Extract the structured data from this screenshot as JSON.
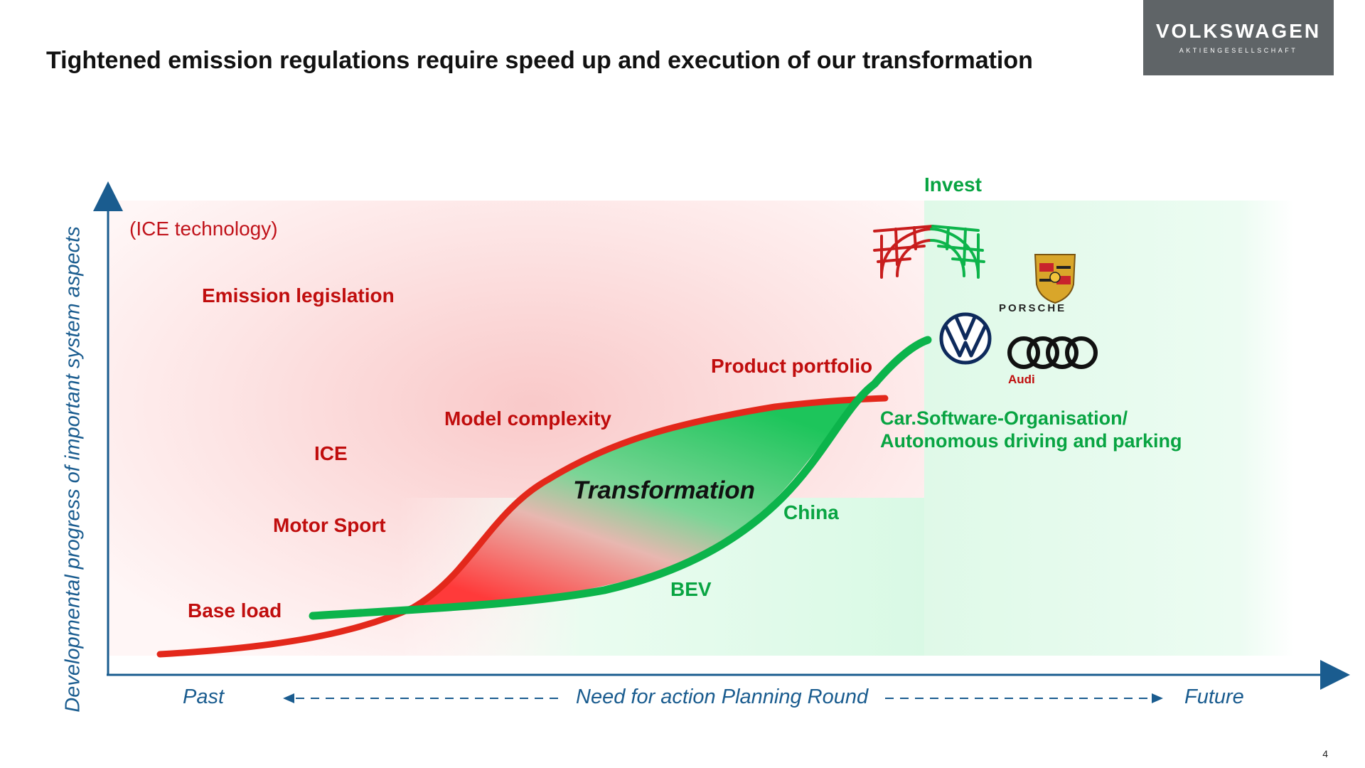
{
  "title": "Tightened emission regulations require speed up and execution of our transformation",
  "logo": {
    "name": "VOLKSWAGEN",
    "sub": "AKTIENGESELLSCHAFT"
  },
  "page_number": "4",
  "y_axis_label": "Developmental progress of important system aspects",
  "x_axis": {
    "left": "Past",
    "center": "Need for action Planning Round",
    "right": "Future"
  },
  "red_labels": {
    "ice_technology": "(ICE technology)",
    "emission_legislation": "Emission legislation",
    "model_complexity": "Model complexity",
    "ice": "ICE",
    "motor_sport": "Motor Sport",
    "base_load": "Base load",
    "product_portfolio": "Product portfolio"
  },
  "green_labels": {
    "invest": "Invest",
    "car_software_line1": "Car.Software-Organisation/",
    "car_software_line2": "Autonomous driving and parking",
    "china": "China",
    "bev": "BEV"
  },
  "center_label": "Transformation",
  "brands": {
    "porsche": "PORSCHE",
    "audi": "Audi"
  },
  "colors": {
    "red": "#e3281b",
    "green": "#0cb44b",
    "axis": "#1a5c8f",
    "logo_bg": "#5f6467"
  }
}
